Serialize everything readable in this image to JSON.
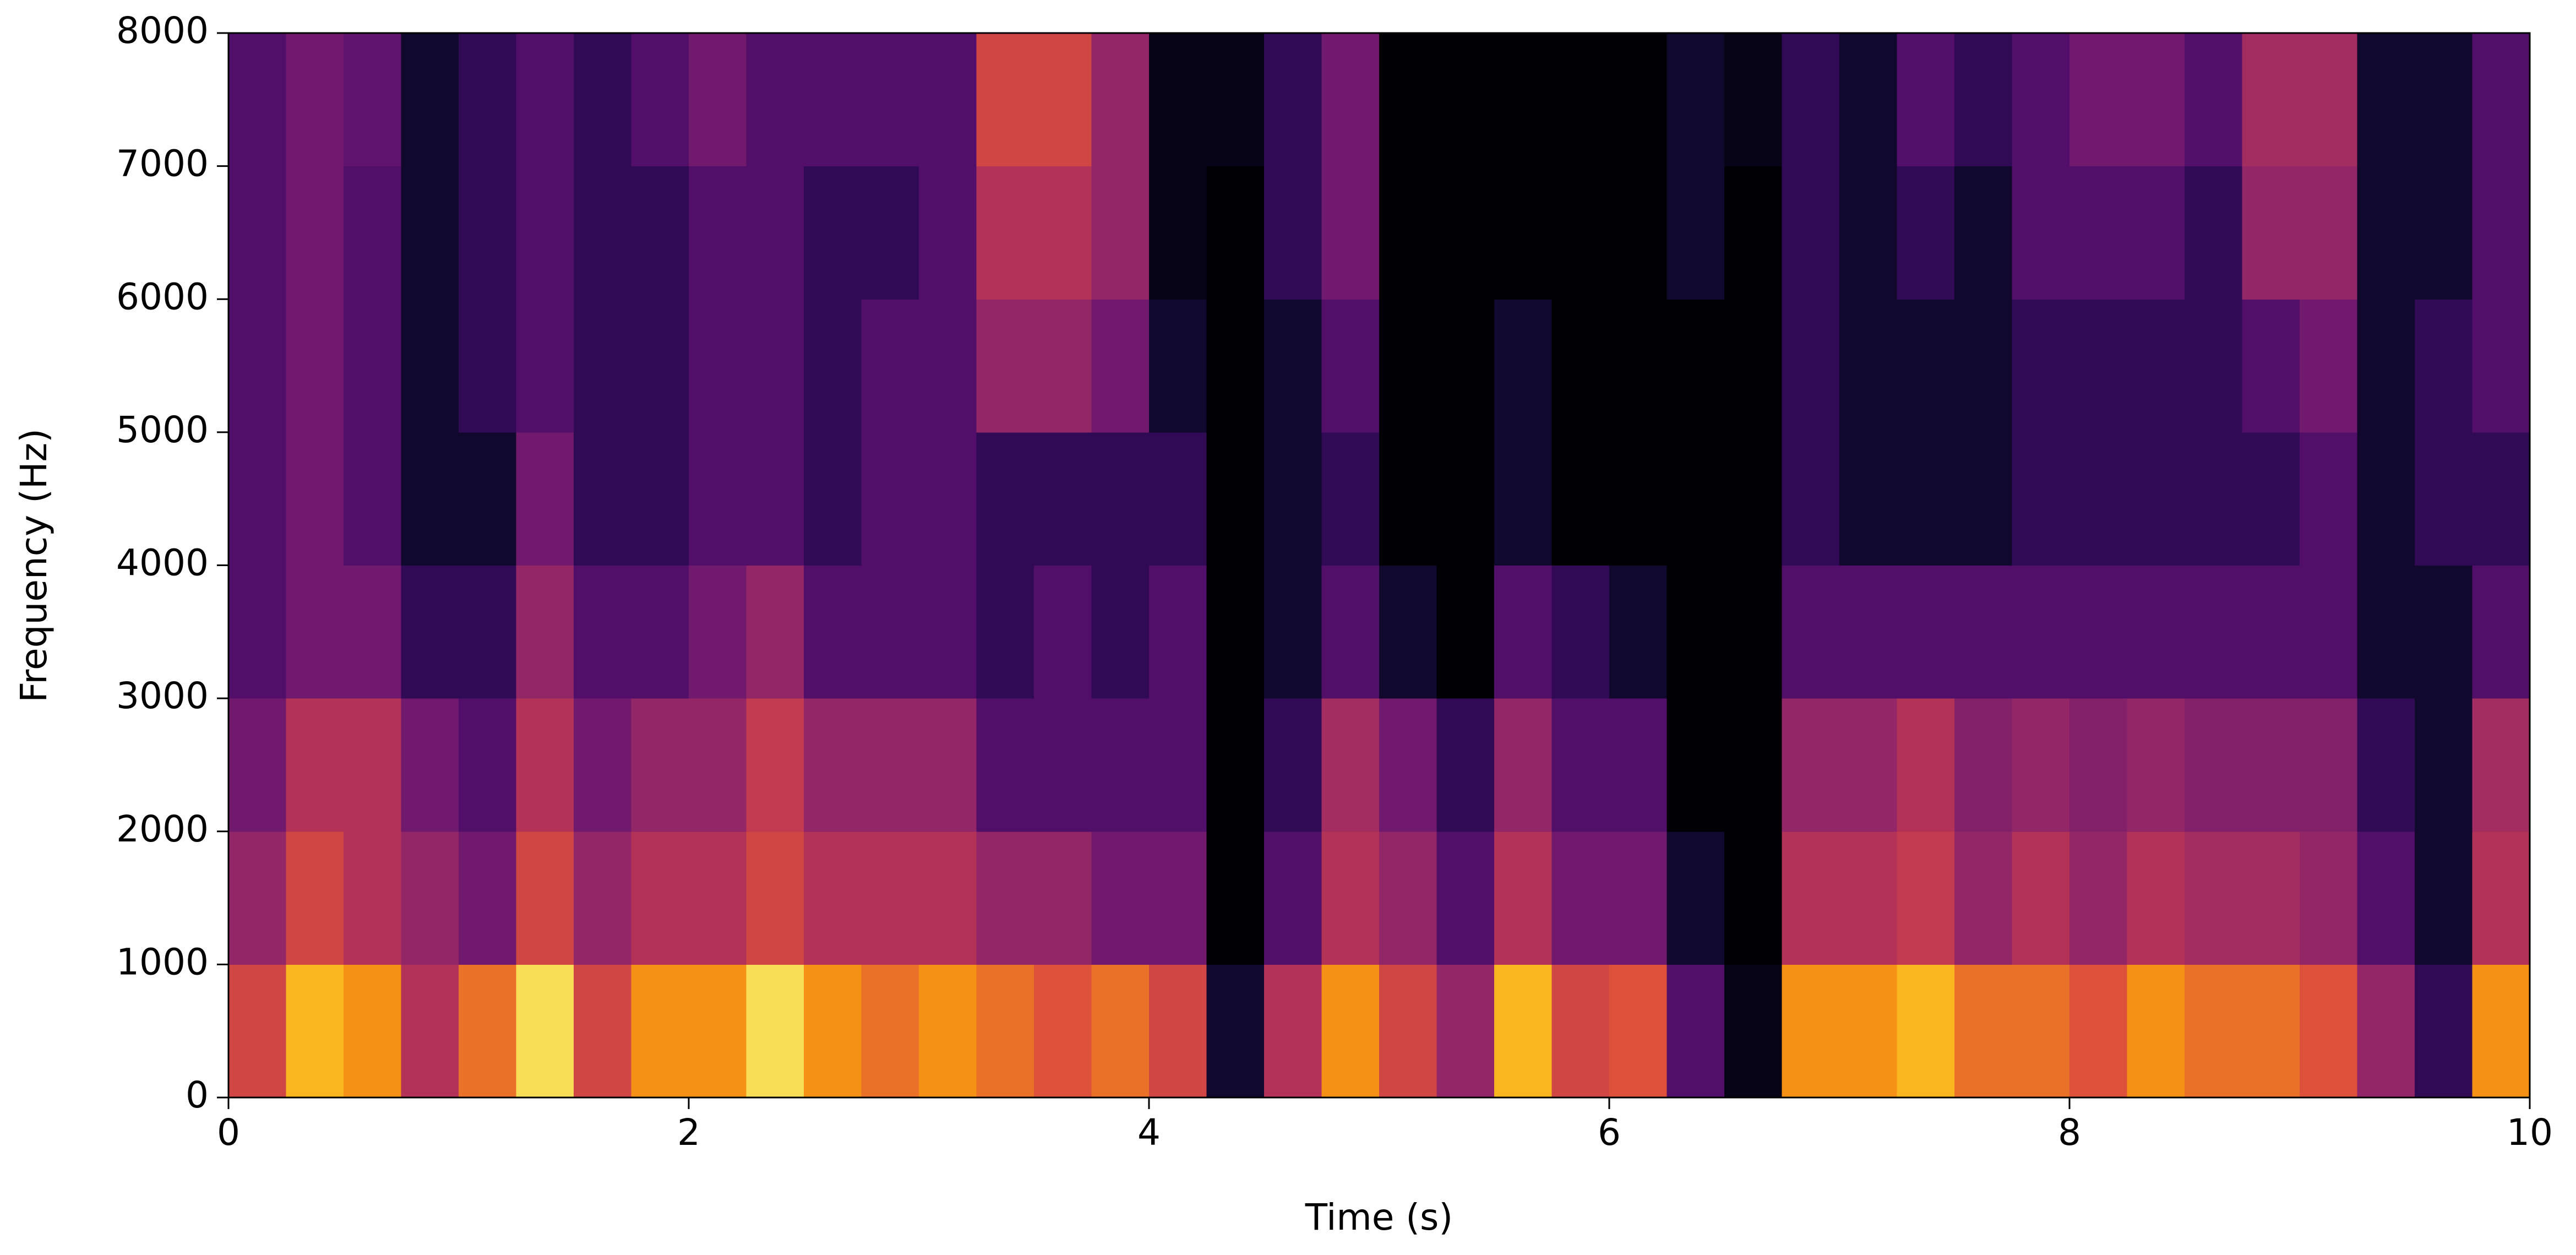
{
  "chart_data": {
    "type": "spectrogram",
    "xlabel": "Time (s)",
    "ylabel": "Frequency (Hz)",
    "xlim": [
      0,
      10
    ],
    "xticks": [
      0,
      2,
      4,
      6,
      8,
      10
    ],
    "ylim": [
      0,
      8000
    ],
    "yticks": [
      0,
      1000,
      2000,
      3000,
      4000,
      5000,
      6000,
      7000,
      8000
    ],
    "colormap": "inferno",
    "z": [
      [
        0.7,
        0.5,
        0.4,
        0.3,
        0.3,
        0.3,
        0.3,
        0.3
      ],
      [
        0.9,
        0.7,
        0.6,
        0.4,
        0.4,
        0.4,
        0.4,
        0.4
      ],
      [
        0.85,
        0.6,
        0.6,
        0.4,
        0.3,
        0.3,
        0.3,
        0.35
      ],
      [
        0.6,
        0.5,
        0.4,
        0.2,
        0.1,
        0.1,
        0.1,
        0.1
      ],
      [
        0.8,
        0.4,
        0.3,
        0.2,
        0.1,
        0.2,
        0.2,
        0.2
      ],
      [
        0.95,
        0.7,
        0.6,
        0.5,
        0.4,
        0.3,
        0.3,
        0.3
      ],
      [
        0.7,
        0.5,
        0.4,
        0.3,
        0.2,
        0.2,
        0.2,
        0.2
      ],
      [
        0.85,
        0.6,
        0.5,
        0.3,
        0.2,
        0.2,
        0.2,
        0.3
      ],
      [
        0.85,
        0.6,
        0.5,
        0.4,
        0.3,
        0.3,
        0.3,
        0.4
      ],
      [
        0.95,
        0.7,
        0.65,
        0.5,
        0.3,
        0.3,
        0.3,
        0.3
      ],
      [
        0.85,
        0.6,
        0.5,
        0.3,
        0.2,
        0.2,
        0.2,
        0.3
      ],
      [
        0.8,
        0.6,
        0.5,
        0.3,
        0.3,
        0.3,
        0.2,
        0.3
      ],
      [
        0.85,
        0.6,
        0.5,
        0.3,
        0.3,
        0.3,
        0.3,
        0.3
      ],
      [
        0.8,
        0.5,
        0.3,
        0.2,
        0.2,
        0.5,
        0.6,
        0.7
      ],
      [
        0.75,
        0.5,
        0.3,
        0.3,
        0.2,
        0.5,
        0.6,
        0.7
      ],
      [
        0.8,
        0.4,
        0.3,
        0.2,
        0.2,
        0.4,
        0.5,
        0.5
      ],
      [
        0.7,
        0.4,
        0.3,
        0.3,
        0.2,
        0.1,
        0.05,
        0.05
      ],
      [
        0.1,
        0,
        0,
        0,
        0,
        0,
        0,
        0.05
      ],
      [
        0.6,
        0.3,
        0.2,
        0.1,
        0.1,
        0.1,
        0.2,
        0.2
      ],
      [
        0.85,
        0.6,
        0.55,
        0.3,
        0.2,
        0.3,
        0.4,
        0.4
      ],
      [
        0.7,
        0.5,
        0.4,
        0.1,
        0,
        0,
        0,
        0
      ],
      [
        0.5,
        0.3,
        0.2,
        0,
        0,
        0,
        0,
        0
      ],
      [
        0.9,
        0.6,
        0.5,
        0.3,
        0.1,
        0.1,
        0,
        0
      ],
      [
        0.7,
        0.4,
        0.3,
        0.2,
        0,
        0,
        0,
        0
      ],
      [
        0.75,
        0.4,
        0.3,
        0.1,
        0,
        0,
        0,
        0
      ],
      [
        0.3,
        0.1,
        0,
        0,
        0,
        0,
        0.1,
        0.1
      ],
      [
        0.05,
        0,
        0,
        0,
        0,
        0,
        0,
        0.05
      ],
      [
        0.85,
        0.6,
        0.5,
        0.3,
        0.2,
        0.2,
        0.2,
        0.2
      ],
      [
        0.85,
        0.6,
        0.5,
        0.3,
        0.1,
        0.1,
        0.1,
        0.1
      ],
      [
        0.9,
        0.65,
        0.6,
        0.3,
        0.1,
        0.1,
        0.2,
        0.3
      ],
      [
        0.8,
        0.5,
        0.45,
        0.3,
        0.1,
        0.1,
        0.1,
        0.2
      ],
      [
        0.8,
        0.6,
        0.5,
        0.3,
        0.2,
        0.2,
        0.3,
        0.3
      ],
      [
        0.75,
        0.5,
        0.45,
        0.3,
        0.2,
        0.2,
        0.3,
        0.4
      ],
      [
        0.85,
        0.6,
        0.5,
        0.3,
        0.2,
        0.2,
        0.3,
        0.4
      ],
      [
        0.8,
        0.55,
        0.45,
        0.3,
        0.2,
        0.2,
        0.2,
        0.3
      ],
      [
        0.8,
        0.55,
        0.45,
        0.3,
        0.2,
        0.3,
        0.5,
        0.55
      ],
      [
        0.75,
        0.5,
        0.45,
        0.3,
        0.3,
        0.4,
        0.5,
        0.55
      ],
      [
        0.5,
        0.3,
        0.2,
        0.1,
        0.1,
        0.1,
        0.1,
        0.1
      ],
      [
        0.2,
        0.1,
        0.1,
        0.1,
        0.2,
        0.2,
        0.1,
        0.1
      ],
      [
        0.85,
        0.6,
        0.55,
        0.3,
        0.2,
        0.3,
        0.3,
        0.3
      ]
    ]
  }
}
